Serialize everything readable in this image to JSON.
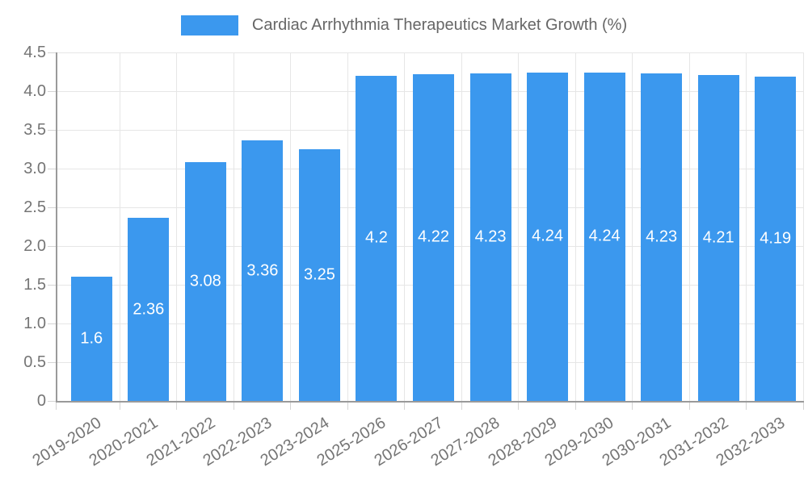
{
  "chart_data": {
    "type": "bar",
    "title": "Cardiac Arrhythmia Therapeutics Market Growth (%)",
    "legend_entries": [
      "Cardiac Arrhythmia Therapeutics Market Growth (%)"
    ],
    "legend_position": "top",
    "categories": [
      "2019-2020",
      "2020-2021",
      "2021-2022",
      "2022-2023",
      "2023-2024",
      "2025-2026",
      "2026-2027",
      "2027-2028",
      "2028-2029",
      "2029-2030",
      "2030-2031",
      "2031-2032",
      "2032-2033"
    ],
    "values": [
      1.6,
      2.36,
      3.08,
      3.36,
      3.25,
      4.2,
      4.22,
      4.23,
      4.24,
      4.24,
      4.23,
      4.21,
      4.19
    ],
    "value_labels": [
      "1.6",
      "2.36",
      "3.08",
      "3.36",
      "3.25",
      "4.2",
      "4.22",
      "4.23",
      "4.24",
      "4.24",
      "4.23",
      "4.21",
      "4.19"
    ],
    "xlabel": "",
    "ylabel": "",
    "ylim": [
      0,
      4.5
    ],
    "ytick_step": 0.5,
    "ytick_labels": [
      "4.5",
      "4.0",
      "3.5",
      "3.0",
      "2.5",
      "2.0",
      "1.5",
      "1.0",
      "0.5",
      "0"
    ],
    "grid": "both",
    "value_label_position": "center-inside",
    "colors": {
      "bar": "#3b98ee",
      "grid": "#e6e6e6",
      "axis": "#9a9a9a",
      "tick": "#d4d4d4",
      "tick_label": "#757575",
      "legend_text": "#666666",
      "value_label": "#ffffff",
      "background": "#ffffff"
    }
  }
}
